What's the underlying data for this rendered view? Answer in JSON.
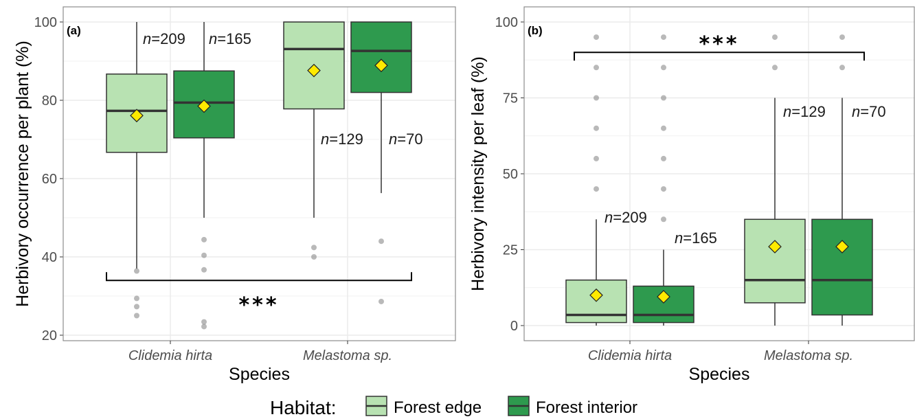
{
  "chart_data": [
    {
      "type": "box",
      "panel_label": "(a)",
      "title": "",
      "xlabel": "Species",
      "ylabel": "Herbivory occurrence per plant (%)",
      "categories": [
        "Clidemia hirta",
        "Melastoma sp."
      ],
      "ylim": [
        19,
        105
      ],
      "yticks": [
        20,
        40,
        60,
        80,
        100
      ],
      "grid": true,
      "significance": "***",
      "bracket_y": 34,
      "series": [
        {
          "name": "Forest edge",
          "boxes": [
            {
              "category": "Clidemia hirta",
              "q1": 66.7,
              "median": 77.3,
              "q3": 86.7,
              "whisker_low": 37,
              "whisker_high": 100,
              "mean": 76.1,
              "outliers": [
                36.4,
                29.4,
                27.3,
                25.0
              ],
              "n_label": "n=209"
            },
            {
              "category": "Melastoma sp.",
              "q1": 77.8,
              "median": 93.1,
              "q3": 100,
              "whisker_low": 50,
              "whisker_high": 100,
              "mean": 87.6,
              "outliers": [
                42.4,
                40.0
              ],
              "n_label": "n=129"
            }
          ]
        },
        {
          "name": "Forest interior",
          "boxes": [
            {
              "category": "Clidemia hirta",
              "q1": 70.4,
              "median": 79.4,
              "q3": 87.5,
              "whisker_low": 50,
              "whisker_high": 100,
              "mean": 78.5,
              "outliers": [
                44.4,
                40.4,
                36.7,
                23.4,
                22.2
              ],
              "n_label": "n=165"
            },
            {
              "category": "Melastoma sp.",
              "q1": 82.0,
              "median": 92.6,
              "q3": 100,
              "whisker_low": 56.3,
              "whisker_high": 100,
              "mean": 88.9,
              "outliers": [
                44.0,
                28.6
              ],
              "n_label": "n=70"
            }
          ]
        }
      ]
    },
    {
      "type": "box",
      "panel_label": "(b)",
      "title": "",
      "xlabel": "Species",
      "ylabel": "Herbivory intensity per leaf (%)",
      "categories": [
        "Clidemia hirta",
        "Melastoma sp."
      ],
      "ylim": [
        -5,
        105
      ],
      "yticks": [
        0,
        25,
        50,
        75,
        100
      ],
      "grid": true,
      "significance": "***",
      "bracket_y": 90,
      "series": [
        {
          "name": "Forest edge",
          "boxes": [
            {
              "category": "Clidemia hirta",
              "q1": 1,
              "median": 3.5,
              "q3": 15,
              "whisker_low": 0,
              "whisker_high": 35,
              "mean": 10,
              "outliers": [
                95,
                85,
                75,
                65,
                55,
                45
              ],
              "n_label": "n=209"
            },
            {
              "category": "Melastoma sp.",
              "q1": 7.5,
              "median": 15,
              "q3": 35,
              "whisker_low": 0,
              "whisker_high": 75,
              "mean": 26,
              "outliers": [
                95,
                85
              ],
              "n_label": "n=129"
            }
          ]
        },
        {
          "name": "Forest interior",
          "boxes": [
            {
              "category": "Clidemia hirta",
              "q1": 1,
              "median": 3.5,
              "q3": 13,
              "whisker_low": 0,
              "whisker_high": 25,
              "mean": 9.5,
              "outliers": [
                95,
                85,
                75,
                65,
                55,
                45,
                35
              ],
              "n_label": "n=165"
            },
            {
              "category": "Melastoma sp.",
              "q1": 3.5,
              "median": 15,
              "q3": 35,
              "whisker_low": 0,
              "whisker_high": 75,
              "mean": 26,
              "outliers": [
                95,
                85
              ],
              "n_label": "n=70"
            }
          ]
        }
      ]
    }
  ],
  "legend": {
    "title": "Habitat:",
    "items": [
      {
        "label": "Forest edge",
        "color": "#b8e2b2"
      },
      {
        "label": "Forest interior",
        "color": "#2e9a4e"
      }
    ]
  },
  "colors": {
    "mean_marker": "#ffea00",
    "outlier": "#7f7f7f",
    "grid": "#ebebeb",
    "panel_border": "#8c8c8c"
  }
}
